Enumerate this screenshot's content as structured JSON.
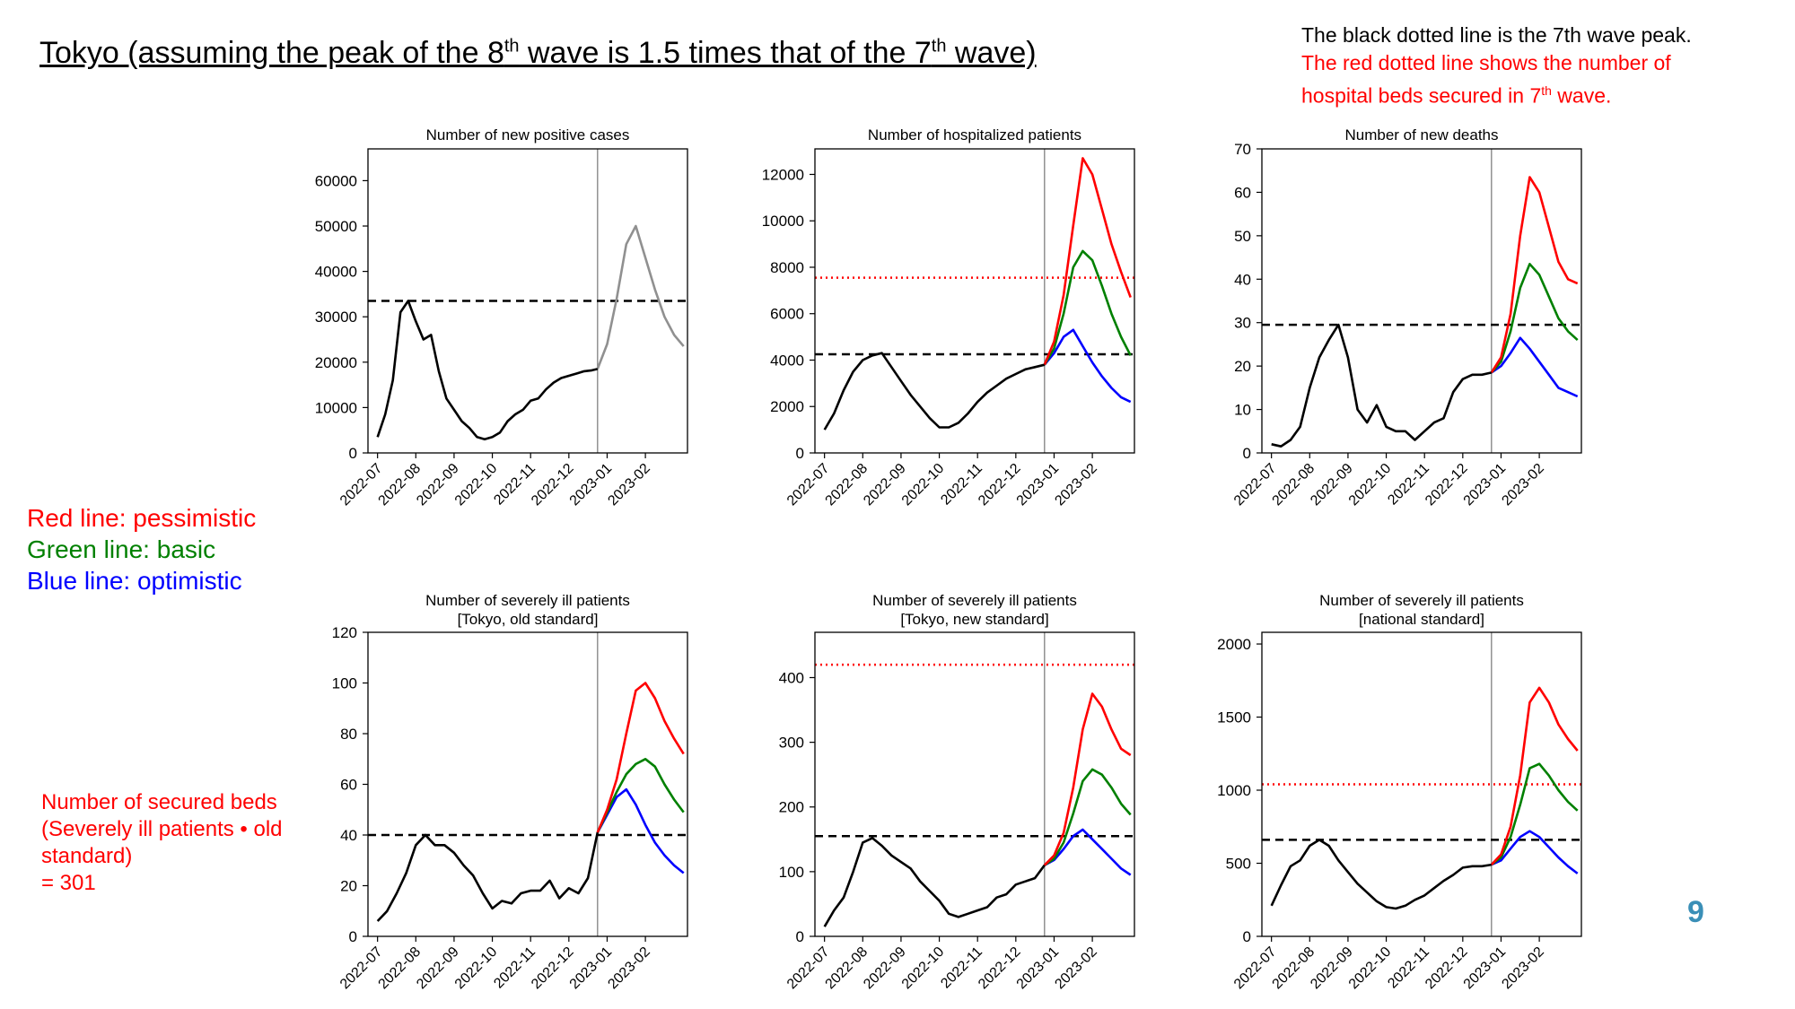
{
  "slide": {
    "title_pre": "Tokyo (assuming the peak of the 8",
    "title_sup1": "th",
    "title_mid": " wave is 1.5 times that of the 7",
    "title_sup2": "th",
    "title_post": " wave)",
    "note_line1": "The black dotted line is the 7th wave peak.",
    "note_line2": "The red dotted line shows the number of",
    "note_line3_pre": "hospital beds secured in 7",
    "note_line3_sup": "th",
    "note_line3_post": " wave.",
    "legend_red": "Red line: pessimistic",
    "legend_green": "Green line: basic",
    "legend_blue": "Blue line: optimistic",
    "beds_note_1": "Number of secured beds",
    "beds_note_2": "(Severely ill patients • old",
    "beds_note_3": "standard)",
    "beds_note_4": "= 301",
    "page_number": "9"
  },
  "colors": {
    "actual": "#000000",
    "projection_single": "#909090",
    "pessimistic": "#ff0000",
    "basic": "#008000",
    "optimistic": "#0000ff",
    "wave7_peak_line": "#000000",
    "beds_line": "#ff0000",
    "divider": "#808080"
  },
  "chart_data": [
    {
      "type": "line",
      "title": "Number of new positive cases",
      "x_tick_labels": [
        "2022-07",
        "2022-08",
        "2022-09",
        "2022-10",
        "2022-11",
        "2022-12",
        "2023-01",
        "2023-02"
      ],
      "ylim": [
        0,
        67000
      ],
      "yticks": [
        0,
        10000,
        20000,
        30000,
        40000,
        50000,
        60000
      ],
      "divider_month": 5.75,
      "wave7_peak": 33500,
      "actual": {
        "x": [
          0,
          0.2,
          0.4,
          0.6,
          0.8,
          1.0,
          1.2,
          1.4,
          1.6,
          1.8,
          2.0,
          2.2,
          2.4,
          2.6,
          2.8,
          3.0,
          3.2,
          3.4,
          3.6,
          3.8,
          4.0,
          4.2,
          4.4,
          4.6,
          4.8,
          5.0,
          5.2,
          5.4,
          5.6,
          5.75
        ],
        "y": [
          3500,
          8500,
          16000,
          31000,
          33500,
          29000,
          25000,
          26000,
          18000,
          12000,
          9500,
          7000,
          5500,
          3500,
          3000,
          3500,
          4500,
          7000,
          8500,
          9500,
          11500,
          12000,
          14000,
          15500,
          16500,
          17000,
          17500,
          18000,
          18200,
          18500
        ]
      },
      "projection": {
        "x": [
          5.75,
          6.0,
          6.25,
          6.5,
          6.75,
          7.0,
          7.25,
          7.5,
          7.75,
          8.0
        ],
        "y": [
          18500,
          24000,
          34000,
          46000,
          50000,
          43000,
          36000,
          30000,
          26000,
          23500
        ]
      }
    },
    {
      "type": "line",
      "title": "Number of hospitalized patients",
      "x_tick_labels": [
        "2022-07",
        "2022-08",
        "2022-09",
        "2022-10",
        "2022-11",
        "2022-12",
        "2023-01",
        "2023-02"
      ],
      "ylim": [
        0,
        13100
      ],
      "yticks": [
        0,
        2000,
        4000,
        6000,
        8000,
        10000,
        12000
      ],
      "divider_month": 5.75,
      "wave7_peak": 4250,
      "beds_secured": 7550,
      "actual": {
        "x": [
          0,
          0.25,
          0.5,
          0.75,
          1.0,
          1.25,
          1.5,
          1.75,
          2.0,
          2.25,
          2.5,
          2.75,
          3.0,
          3.25,
          3.5,
          3.75,
          4.0,
          4.25,
          4.5,
          4.75,
          5.0,
          5.25,
          5.5,
          5.75
        ],
        "y": [
          1000,
          1700,
          2700,
          3500,
          4000,
          4200,
          4300,
          3700,
          3100,
          2500,
          2000,
          1500,
          1100,
          1100,
          1300,
          1700,
          2200,
          2600,
          2900,
          3200,
          3400,
          3600,
          3700,
          3800
        ]
      },
      "pessimistic": {
        "x": [
          5.75,
          6.0,
          6.25,
          6.5,
          6.75,
          7.0,
          7.25,
          7.5,
          7.75,
          8.0
        ],
        "y": [
          3800,
          4800,
          6800,
          9800,
          12700,
          12000,
          10500,
          9000,
          7800,
          6700
        ]
      },
      "basic": {
        "x": [
          5.75,
          6.0,
          6.25,
          6.5,
          6.75,
          7.0,
          7.25,
          7.5,
          7.75,
          8.0
        ],
        "y": [
          3800,
          4500,
          6000,
          8000,
          8700,
          8300,
          7200,
          6000,
          5000,
          4200
        ]
      },
      "optimistic": {
        "x": [
          5.75,
          6.0,
          6.25,
          6.5,
          6.75,
          7.0,
          7.25,
          7.5,
          7.75,
          8.0
        ],
        "y": [
          3800,
          4300,
          5000,
          5300,
          4600,
          3900,
          3300,
          2800,
          2400,
          2200
        ]
      }
    },
    {
      "type": "line",
      "title": "Number of new deaths",
      "x_tick_labels": [
        "2022-07",
        "2022-08",
        "2022-09",
        "2022-10",
        "2022-11",
        "2022-12",
        "2023-01",
        "2023-02"
      ],
      "ylim": [
        0,
        70
      ],
      "yticks": [
        0,
        10,
        20,
        30,
        40,
        50,
        60,
        70
      ],
      "divider_month": 5.75,
      "wave7_peak": 29.5,
      "actual": {
        "x": [
          0,
          0.25,
          0.5,
          0.75,
          1.0,
          1.25,
          1.5,
          1.75,
          2.0,
          2.25,
          2.5,
          2.75,
          3.0,
          3.25,
          3.5,
          3.75,
          4.0,
          4.25,
          4.5,
          4.75,
          5.0,
          5.25,
          5.5,
          5.75
        ],
        "y": [
          2,
          1.5,
          3,
          6,
          15,
          22,
          26,
          29.5,
          22,
          10,
          7,
          11,
          6,
          5,
          5,
          3,
          5,
          7,
          8,
          14,
          17,
          18,
          18,
          18.5
        ]
      },
      "pessimistic": {
        "x": [
          5.75,
          6.0,
          6.25,
          6.5,
          6.75,
          7.0,
          7.25,
          7.5,
          7.75,
          8.0
        ],
        "y": [
          18.5,
          22,
          32,
          50,
          63.5,
          60,
          52,
          44,
          40,
          39
        ]
      },
      "basic": {
        "x": [
          5.75,
          6.0,
          6.25,
          6.5,
          6.75,
          7.0,
          7.25,
          7.5,
          7.75,
          8.0
        ],
        "y": [
          18.5,
          21,
          28,
          38,
          43.5,
          41,
          36,
          31,
          28,
          26
        ]
      },
      "optimistic": {
        "x": [
          5.75,
          6.0,
          6.25,
          6.5,
          6.75,
          7.0,
          7.25,
          7.5,
          7.75,
          8.0
        ],
        "y": [
          18.5,
          20,
          23,
          26.5,
          24,
          21,
          18,
          15,
          14,
          13
        ]
      }
    },
    {
      "type": "line",
      "title": "Number of severely ill patients",
      "subtitle": "[Tokyo, old standard]",
      "x_tick_labels": [
        "2022-07",
        "2022-08",
        "2022-09",
        "2022-10",
        "2022-11",
        "2022-12",
        "2023-01",
        "2023-02"
      ],
      "ylim": [
        0,
        120
      ],
      "yticks": [
        0,
        20,
        40,
        60,
        80,
        100,
        120
      ],
      "divider_month": 5.75,
      "wave7_peak": 40,
      "actual": {
        "x": [
          0,
          0.25,
          0.5,
          0.75,
          1.0,
          1.25,
          1.5,
          1.75,
          2.0,
          2.25,
          2.5,
          2.75,
          3.0,
          3.25,
          3.5,
          3.75,
          4.0,
          4.25,
          4.5,
          4.75,
          5.0,
          5.25,
          5.5,
          5.75
        ],
        "y": [
          6,
          10,
          17,
          25,
          36,
          40,
          36,
          36,
          33,
          28,
          24,
          17,
          11,
          14,
          13,
          17,
          18,
          18,
          22,
          15,
          19,
          17,
          23,
          41
        ]
      },
      "pessimistic": {
        "x": [
          5.75,
          6.0,
          6.25,
          6.5,
          6.75,
          7.0,
          7.25,
          7.5,
          7.75,
          8.0
        ],
        "y": [
          41,
          50,
          62,
          80,
          97,
          100,
          94,
          85,
          78,
          72
        ]
      },
      "basic": {
        "x": [
          5.75,
          6.0,
          6.25,
          6.5,
          6.75,
          7.0,
          7.25,
          7.5,
          7.75,
          8.0
        ],
        "y": [
          41,
          49,
          57,
          64,
          68,
          70,
          67,
          60,
          54,
          49
        ]
      },
      "optimistic": {
        "x": [
          5.75,
          6.0,
          6.25,
          6.5,
          6.75,
          7.0,
          7.25,
          7.5,
          7.75,
          8.0
        ],
        "y": [
          41,
          48,
          55,
          58,
          52,
          44,
          37,
          32,
          28,
          25
        ]
      }
    },
    {
      "type": "line",
      "title": "Number of severely ill patients",
      "subtitle": "[Tokyo, new standard]",
      "x_tick_labels": [
        "2022-07",
        "2022-08",
        "2022-09",
        "2022-10",
        "2022-11",
        "2022-12",
        "2023-01",
        "2023-02"
      ],
      "ylim": [
        0,
        470
      ],
      "yticks": [
        0,
        100,
        200,
        300,
        400
      ],
      "divider_month": 5.75,
      "wave7_peak": 155,
      "beds_secured": 420,
      "actual": {
        "x": [
          0,
          0.25,
          0.5,
          0.75,
          1.0,
          1.25,
          1.5,
          1.75,
          2.0,
          2.25,
          2.5,
          2.75,
          3.0,
          3.25,
          3.5,
          3.75,
          4.0,
          4.25,
          4.5,
          4.75,
          5.0,
          5.25,
          5.5,
          5.75
        ],
        "y": [
          15,
          40,
          60,
          100,
          145,
          152,
          140,
          125,
          115,
          105,
          85,
          70,
          55,
          35,
          30,
          35,
          40,
          45,
          60,
          65,
          80,
          85,
          90,
          110
        ]
      },
      "pessimistic": {
        "x": [
          5.75,
          6.0,
          6.25,
          6.5,
          6.75,
          7.0,
          7.25,
          7.5,
          7.75,
          8.0
        ],
        "y": [
          110,
          125,
          160,
          230,
          320,
          375,
          355,
          320,
          290,
          280
        ]
      },
      "basic": {
        "x": [
          5.75,
          6.0,
          6.25,
          6.5,
          6.75,
          7.0,
          7.25,
          7.5,
          7.75,
          8.0
        ],
        "y": [
          110,
          120,
          145,
          190,
          240,
          258,
          250,
          230,
          205,
          188
        ]
      },
      "optimistic": {
        "x": [
          5.75,
          6.0,
          6.25,
          6.5,
          6.75,
          7.0,
          7.25,
          7.5,
          7.75,
          8.0
        ],
        "y": [
          110,
          118,
          135,
          155,
          165,
          150,
          135,
          120,
          105,
          95
        ]
      }
    },
    {
      "type": "line",
      "title": "Number of severely ill patients",
      "subtitle": "[national standard]",
      "x_tick_labels": [
        "2022-07",
        "2022-08",
        "2022-09",
        "2022-10",
        "2022-11",
        "2022-12",
        "2023-01",
        "2023-02"
      ],
      "ylim": [
        0,
        2080
      ],
      "yticks": [
        0,
        500,
        1000,
        1500,
        2000
      ],
      "divider_month": 5.75,
      "wave7_peak": 660,
      "beds_secured": 1040,
      "actual": {
        "x": [
          0,
          0.25,
          0.5,
          0.75,
          1.0,
          1.25,
          1.5,
          1.75,
          2.0,
          2.25,
          2.5,
          2.75,
          3.0,
          3.25,
          3.5,
          3.75,
          4.0,
          4.25,
          4.5,
          4.75,
          5.0,
          5.25,
          5.5,
          5.75
        ],
        "y": [
          210,
          350,
          480,
          520,
          620,
          660,
          620,
          520,
          440,
          360,
          300,
          240,
          200,
          190,
          210,
          250,
          280,
          330,
          380,
          420,
          470,
          480,
          480,
          490
        ]
      },
      "pessimistic": {
        "x": [
          5.75,
          6.0,
          6.25,
          6.5,
          6.75,
          7.0,
          7.25,
          7.5,
          7.75,
          8.0
        ],
        "y": [
          490,
          560,
          750,
          1100,
          1600,
          1700,
          1600,
          1450,
          1350,
          1270
        ]
      },
      "basic": {
        "x": [
          5.75,
          6.0,
          6.25,
          6.5,
          6.75,
          7.0,
          7.25,
          7.5,
          7.75,
          8.0
        ],
        "y": [
          490,
          540,
          680,
          900,
          1150,
          1180,
          1100,
          1000,
          920,
          860
        ]
      },
      "optimistic": {
        "x": [
          5.75,
          6.0,
          6.25,
          6.5,
          6.75,
          7.0,
          7.25,
          7.5,
          7.75,
          8.0
        ],
        "y": [
          490,
          520,
          600,
          680,
          720,
          680,
          610,
          540,
          480,
          430
        ]
      }
    }
  ]
}
